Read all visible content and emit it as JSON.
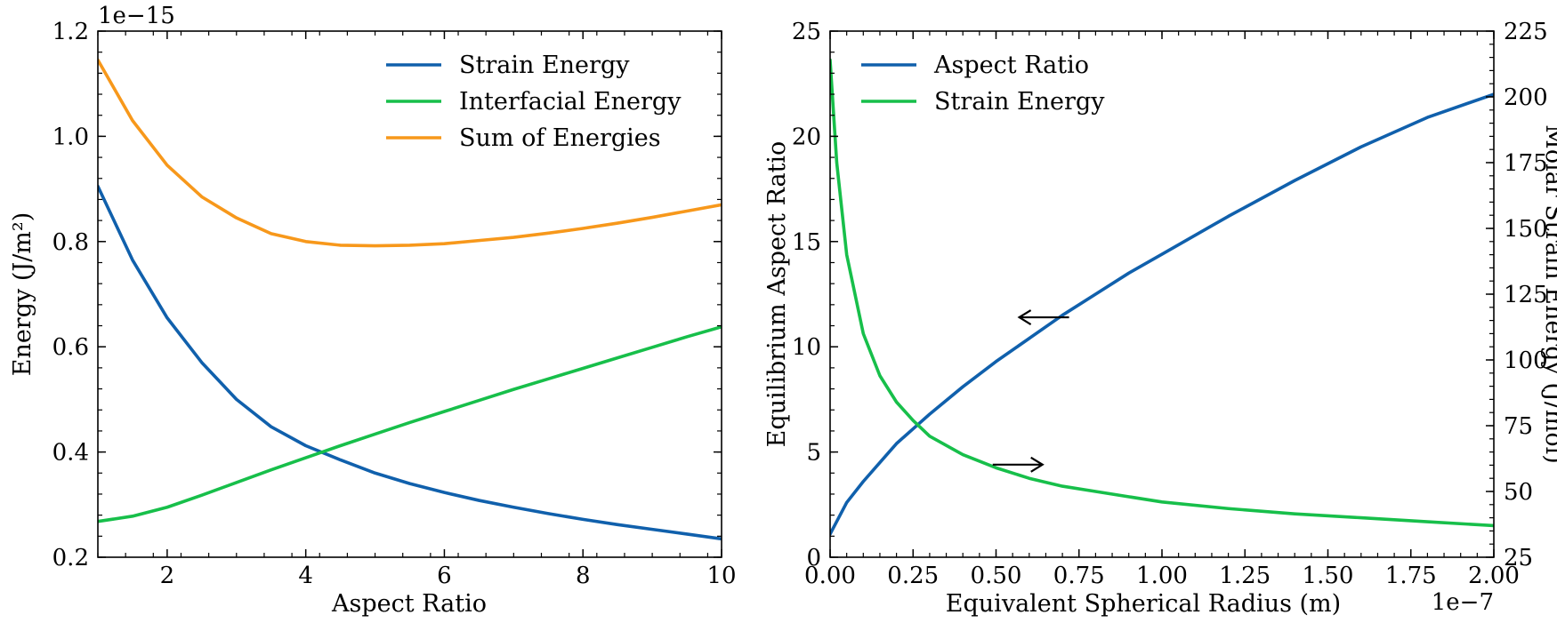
{
  "colors": {
    "strain": "#1060ac",
    "interfacial": "#17bf4a",
    "sum": "#f7981b",
    "aspect": "#1060ac",
    "molar_strain": "#17bf4a",
    "axes": "#000000"
  },
  "chart_data": [
    {
      "type": "line",
      "xlabel": "Aspect Ratio",
      "ylabel": "Energy (J/m²)",
      "offset_text": "1e−15",
      "xlim": [
        1,
        10
      ],
      "ylim": [
        0.2,
        1.2
      ],
      "xticks": [
        2,
        4,
        6,
        8,
        10
      ],
      "xtick_labels": [
        "2",
        "4",
        "6",
        "8",
        "10"
      ],
      "yticks": [
        0.2,
        0.4,
        0.6,
        0.8,
        1.0,
        1.2
      ],
      "ytick_labels": [
        "0.2",
        "0.4",
        "0.6",
        "0.8",
        "1.0",
        "1.2"
      ],
      "legend": "top-right",
      "grid": false,
      "series": [
        {
          "name": "Strain Energy",
          "key": "strain",
          "x": [
            1,
            1.5,
            2,
            2.5,
            3,
            3.5,
            4,
            4.5,
            5,
            5.5,
            6,
            6.5,
            7,
            7.5,
            8,
            8.5,
            9,
            9.5,
            10
          ],
          "y": [
            0.905,
            0.765,
            0.655,
            0.57,
            0.5,
            0.448,
            0.412,
            0.385,
            0.36,
            0.34,
            0.323,
            0.308,
            0.295,
            0.283,
            0.272,
            0.262,
            0.253,
            0.244,
            0.235
          ]
        },
        {
          "name": "Interfacial Energy",
          "key": "interfacial",
          "x": [
            1,
            1.5,
            2,
            2.5,
            3,
            3.5,
            4,
            4.5,
            5,
            5.5,
            6,
            6.5,
            7,
            7.5,
            8,
            8.5,
            9,
            9.5,
            10
          ],
          "y": [
            0.268,
            0.278,
            0.295,
            0.318,
            0.342,
            0.366,
            0.389,
            0.412,
            0.434,
            0.456,
            0.477,
            0.498,
            0.519,
            0.539,
            0.559,
            0.579,
            0.599,
            0.619,
            0.638
          ]
        },
        {
          "name": "Sum of Energies",
          "key": "sum",
          "x": [
            1,
            1.5,
            2,
            2.5,
            3,
            3.5,
            4,
            4.5,
            5,
            5.5,
            6,
            6.5,
            7,
            7.5,
            8,
            8.5,
            9,
            9.5,
            10
          ],
          "y": [
            1.145,
            1.03,
            0.945,
            0.885,
            0.845,
            0.815,
            0.8,
            0.793,
            0.792,
            0.793,
            0.796,
            0.802,
            0.808,
            0.816,
            0.825,
            0.835,
            0.846,
            0.858,
            0.87
          ]
        }
      ]
    },
    {
      "type": "line",
      "xlabel": "Equivalent Spherical Radius (m)",
      "ylabel": "Equilibrium Aspect Ratio",
      "ylabel_right": "Molar Strain Energy (J/mol)",
      "offset_text": "1e−7",
      "xlim": [
        0,
        2.0
      ],
      "ylim": [
        0,
        25
      ],
      "ylim_right": [
        25,
        225
      ],
      "xticks": [
        0,
        0.25,
        0.5,
        0.75,
        1.0,
        1.25,
        1.5,
        1.75,
        2.0
      ],
      "xtick_labels": [
        "0.00",
        "0.25",
        "0.50",
        "0.75",
        "1.00",
        "1.25",
        "1.50",
        "1.75",
        "2.00"
      ],
      "yticks": [
        0,
        5,
        10,
        15,
        20,
        25
      ],
      "ytick_labels": [
        "0",
        "5",
        "10",
        "15",
        "20",
        "25"
      ],
      "yticks_right": [
        25,
        50,
        75,
        100,
        125,
        150,
        175,
        200,
        225
      ],
      "ytick_labels_right": [
        "25",
        "50",
        "75",
        "100",
        "125",
        "150",
        "175",
        "200",
        "225"
      ],
      "legend": "top-left",
      "grid": false,
      "series": [
        {
          "name": "Aspect Ratio",
          "key": "aspect",
          "axis": "left",
          "x": [
            0.0,
            0.05,
            0.1,
            0.15,
            0.2,
            0.25,
            0.3,
            0.4,
            0.5,
            0.6,
            0.7,
            0.8,
            0.9,
            1.0,
            1.2,
            1.4,
            1.6,
            1.8,
            2.0
          ],
          "y": [
            1.1,
            2.6,
            3.6,
            4.5,
            5.4,
            6.1,
            6.8,
            8.1,
            9.3,
            10.4,
            11.5,
            12.5,
            13.5,
            14.4,
            16.2,
            17.9,
            19.5,
            20.9,
            22.0
          ]
        },
        {
          "name": "Strain Energy",
          "key": "molar_strain",
          "axis": "right",
          "x": [
            0.0,
            0.02,
            0.05,
            0.1,
            0.15,
            0.2,
            0.25,
            0.3,
            0.4,
            0.5,
            0.6,
            0.7,
            0.8,
            1.0,
            1.2,
            1.4,
            1.6,
            1.8,
            2.0
          ],
          "y": [
            214,
            175,
            140,
            110,
            94,
            84,
            77,
            71,
            64,
            59,
            55,
            52,
            50,
            46,
            43.5,
            41.5,
            40,
            38.5,
            37
          ]
        }
      ],
      "annotations": [
        {
          "label": "left-arrow",
          "direction": "left",
          "x_from": 0.72,
          "x_to": 0.57,
          "y": 11.4,
          "axis": "left"
        },
        {
          "label": "right-arrow",
          "direction": "right",
          "x_from": 0.49,
          "x_to": 0.64,
          "y": 4.4,
          "axis": "left"
        }
      ]
    }
  ]
}
